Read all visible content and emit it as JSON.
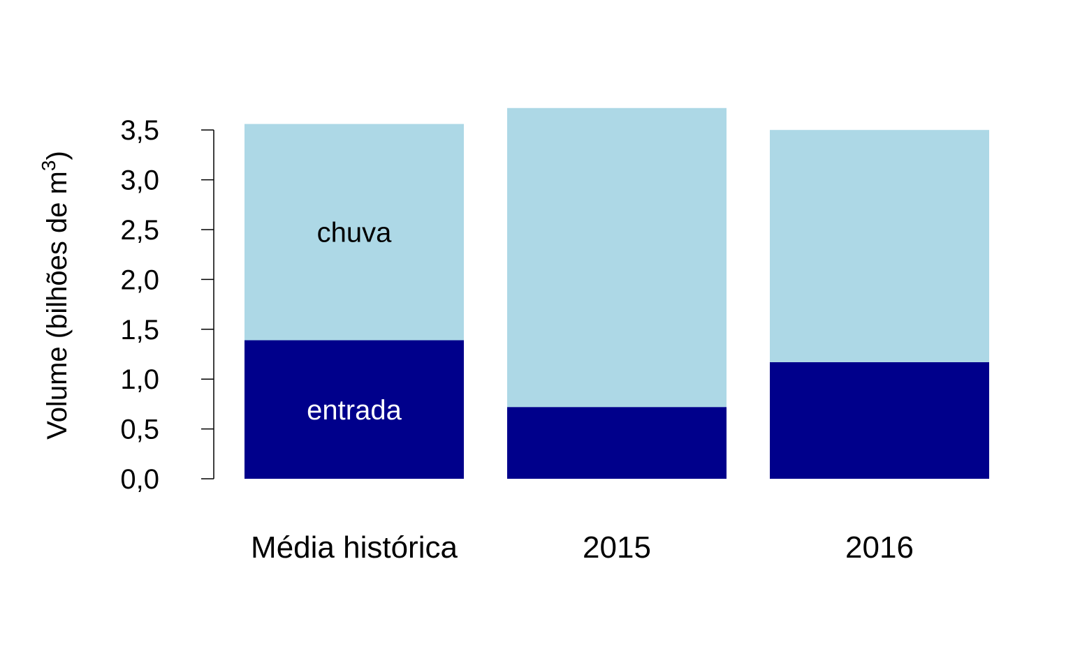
{
  "chart_data": {
    "type": "bar",
    "stacked": true,
    "categories": [
      "Média histórica",
      "2015",
      "2016"
    ],
    "series": [
      {
        "name": "entrada",
        "color": "#00008B",
        "label_color": "#ffffff",
        "values": [
          1.39,
          0.72,
          1.17
        ]
      },
      {
        "name": "chuva",
        "color": "#ADD8E6",
        "label_color": "#000000",
        "values": [
          2.17,
          3.0,
          2.33
        ]
      }
    ],
    "ylabel": "Volume (bilhões de m",
    "ylabel_superscript": "3",
    "ylabel_suffix": ")",
    "ylim": [
      0,
      3.5
    ],
    "yticks": [
      0,
      0.5,
      1.0,
      1.5,
      2.0,
      2.5,
      3.0,
      3.5
    ],
    "ytick_labels": [
      "0,0",
      "0,5",
      "1,0",
      "1,5",
      "2,0",
      "2,5",
      "3,0",
      "3,5"
    ],
    "grid": false,
    "legend": "none"
  }
}
